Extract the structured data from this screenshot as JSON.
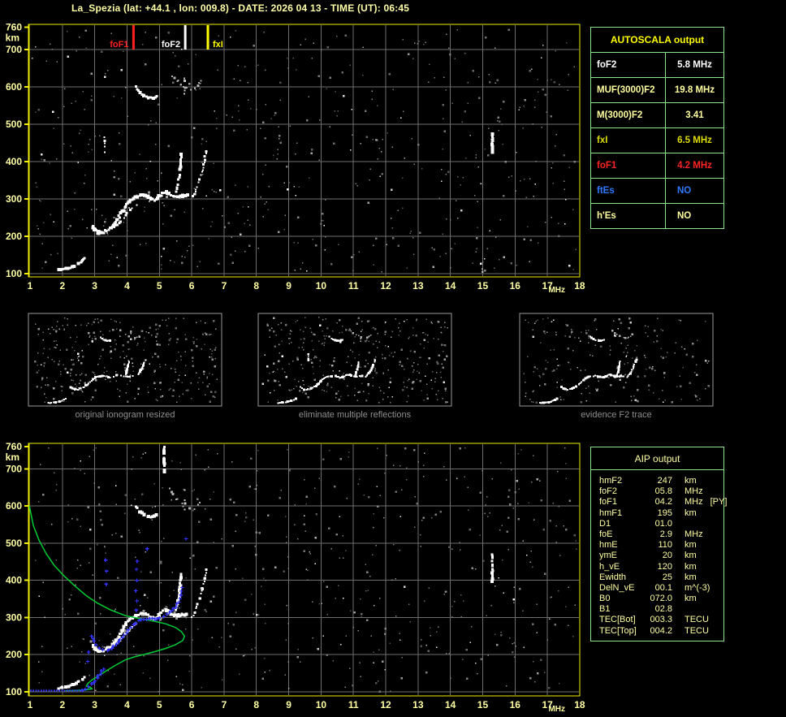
{
  "header": {
    "title": "La_Spezia (lat:  +44.1 , lon:  009.8) - DATE:  2026 04 13  - TIME (UT):  06:45"
  },
  "colors": {
    "pale_yellow": "#FFFFA4",
    "axis_yellow": "#F0F000",
    "grid_gray": "#6E6E6E",
    "table_green": "#8CE68C",
    "header_yellow": "#FFFF00",
    "row_white": "#FFFFFF",
    "row_pale": "#FFFF9E",
    "row_yellow": "#DCDC00",
    "row_red": "#FF2424",
    "row_blue": "#2E7BFF",
    "marker_red": "#FF2020",
    "marker_white": "#FFFFFF",
    "marker_yellow": "#FFFF00",
    "profile_green": "#00CD33",
    "trace_blue": "#3333FF",
    "noise_gray": "#8C8C8C",
    "caption_gray": "#8F8F8F",
    "trace_white": "#FFFFFF",
    "echo_gray": "#B0B0B0"
  },
  "autoscala_table": {
    "title": "AUTOSCALA output",
    "rows": [
      {
        "label": "foF2",
        "value": "5.8 MHz",
        "color": "row_white"
      },
      {
        "label": "MUF(3000)F2",
        "value": "19.8 MHz",
        "color": "row_pale"
      },
      {
        "label": "M(3000)F2",
        "value": "3.41",
        "color": "row_pale"
      },
      {
        "label": "fxI",
        "value": "6.5 MHz",
        "color": "row_yellow"
      },
      {
        "label": "foF1",
        "value": "4.2 MHz",
        "color": "row_red"
      },
      {
        "label": "ftEs",
        "value": "NO",
        "color": "row_blue"
      },
      {
        "label": "h'Es",
        "value": "NO",
        "color": "row_pale"
      }
    ]
  },
  "aip_table": {
    "title": "AIP output",
    "rows": [
      {
        "label": "hmF2",
        "value": "247",
        "unit": "km",
        "note": ""
      },
      {
        "label": "foF2",
        "value": "05.8",
        "unit": "MHz",
        "note": ""
      },
      {
        "label": "foF1",
        "value": "04.2",
        "unit": "MHz",
        "note": "[PY]"
      },
      {
        "label": "hmF1",
        "value": "195",
        "unit": "km",
        "note": ""
      },
      {
        "label": "D1",
        "value": "01.0",
        "unit": "",
        "note": ""
      },
      {
        "label": "foE",
        "value": "2.9",
        "unit": "MHz",
        "note": ""
      },
      {
        "label": "hmE",
        "value": "110",
        "unit": "km",
        "note": ""
      },
      {
        "label": "ymE",
        "value": "20",
        "unit": "km",
        "note": ""
      },
      {
        "label": "h_vE",
        "value": "120",
        "unit": "km",
        "note": ""
      },
      {
        "label": "Ewidth",
        "value": "25",
        "unit": "km",
        "note": ""
      },
      {
        "label": "DelN_vE",
        "value": "00.1",
        "unit": "m^(-3)",
        "note": ""
      },
      {
        "label": "B0",
        "value": "072.0",
        "unit": "km",
        "note": ""
      },
      {
        "label": "B1",
        "value": "02.8",
        "unit": "",
        "note": ""
      },
      {
        "label": "TEC[Bot]",
        "value": "003.3",
        "unit": "TECU",
        "note": ""
      },
      {
        "label": "TEC[Top]",
        "value": "004.2",
        "unit": "TECU",
        "note": ""
      }
    ]
  },
  "thumbnails": [
    {
      "caption": "original ionogram resized"
    },
    {
      "caption": "eliminate multiple reflections"
    },
    {
      "caption": "evidence F2 trace"
    }
  ],
  "chart_data": [
    {
      "id": "main_ionogram",
      "type": "scatter",
      "title": "autoscaled ionogram with characteristic frequency markers",
      "xlabel": "MHz",
      "ylabel": "km",
      "xlim": [
        1,
        18
      ],
      "ylim": [
        100,
        760
      ],
      "grid": true,
      "x_ticks": [
        1,
        2,
        3,
        4,
        5,
        6,
        7,
        8,
        9,
        10,
        11,
        12,
        13,
        14,
        15,
        16,
        17,
        18
      ],
      "y_ticks": [
        760,
        700,
        600,
        500,
        400,
        300,
        200,
        100
      ],
      "markers": [
        {
          "label": "foF1",
          "f": 4.2,
          "color": "marker_red",
          "side": "left"
        },
        {
          "label": "foF2",
          "f": 5.8,
          "color": "marker_white",
          "side": "left"
        },
        {
          "label": "fxI",
          "f": 6.5,
          "color": "marker_yellow",
          "side": "right"
        }
      ],
      "traces": {
        "e_trace": [
          [
            1.88,
            110
          ],
          [
            2.0,
            112
          ],
          [
            2.12,
            113
          ],
          [
            2.25,
            116
          ],
          [
            2.38,
            121
          ],
          [
            2.5,
            127
          ],
          [
            2.62,
            134
          ],
          [
            2.7,
            141
          ]
        ],
        "f_trace": [
          [
            2.92,
            228
          ],
          [
            3.0,
            218
          ],
          [
            3.12,
            210
          ],
          [
            3.28,
            211
          ],
          [
            3.42,
            218
          ],
          [
            3.58,
            230
          ],
          [
            3.72,
            247
          ],
          [
            3.85,
            266
          ],
          [
            3.97,
            284
          ],
          [
            4.1,
            297
          ],
          [
            4.25,
            306
          ],
          [
            4.42,
            310
          ],
          [
            4.58,
            309
          ],
          [
            4.72,
            301
          ],
          [
            4.85,
            297
          ],
          [
            4.97,
            303
          ],
          [
            5.08,
            315
          ],
          [
            5.2,
            320
          ],
          [
            5.32,
            313
          ],
          [
            5.45,
            307
          ],
          [
            5.6,
            306
          ],
          [
            5.72,
            308
          ],
          [
            5.85,
            311
          ]
        ],
        "f_trace_lower": [
          [
            3.55,
            220
          ],
          [
            3.7,
            231
          ],
          [
            3.85,
            245
          ],
          [
            4.0,
            261
          ],
          [
            4.15,
            275
          ],
          [
            4.28,
            284
          ]
        ],
        "o_asymptote": [
          [
            5.52,
            320
          ],
          [
            5.57,
            338
          ],
          [
            5.61,
            358
          ],
          [
            5.64,
            380
          ],
          [
            5.66,
            400
          ],
          [
            5.68,
            418
          ]
        ],
        "x_branch": [
          [
            6.02,
            300
          ],
          [
            6.08,
            312
          ],
          [
            6.16,
            330
          ],
          [
            6.25,
            352
          ],
          [
            6.33,
            378
          ],
          [
            6.4,
            405
          ],
          [
            6.46,
            428
          ]
        ],
        "echo_arc_low": [
          [
            4.28,
            600
          ],
          [
            4.4,
            585
          ],
          [
            4.52,
            576
          ],
          [
            4.66,
            571
          ],
          [
            4.8,
            571
          ],
          [
            4.93,
            576
          ]
        ],
        "echo_arc_high": [
          [
            5.3,
            645
          ],
          [
            5.42,
            630
          ],
          [
            5.55,
            617
          ],
          [
            5.68,
            606
          ],
          [
            5.82,
            597
          ],
          [
            5.95,
            592
          ],
          [
            6.08,
            594
          ],
          [
            6.18,
            602
          ],
          [
            6.26,
            614
          ]
        ],
        "echo_streak": [
          [
            5.78,
            565
          ],
          [
            5.78,
            640
          ]
        ],
        "streak_a": [
          [
            3.3,
            425
          ],
          [
            3.3,
            472
          ]
        ],
        "streak_b": [
          [
            15.3,
            425
          ],
          [
            15.3,
            475
          ]
        ]
      }
    },
    {
      "id": "profile_ionogram",
      "type": "scatter",
      "title": "ionogram with restored trace and electron density profile",
      "xlabel": "MHz",
      "ylabel": "km",
      "xlim": [
        1,
        18
      ],
      "ylim": [
        100,
        760
      ],
      "grid": true,
      "x_ticks": [
        1,
        2,
        3,
        4,
        5,
        6,
        7,
        8,
        9,
        10,
        11,
        12,
        13,
        14,
        15,
        16,
        17,
        18
      ],
      "y_ticks": [
        760,
        700,
        600,
        500,
        400,
        300,
        200,
        100
      ],
      "traces": {
        "e_trace": [
          [
            1.88,
            110
          ],
          [
            2.0,
            112
          ],
          [
            2.12,
            113
          ],
          [
            2.25,
            116
          ],
          [
            2.38,
            121
          ],
          [
            2.5,
            127
          ],
          [
            2.62,
            134
          ],
          [
            2.7,
            141
          ]
        ],
        "f_trace": [
          [
            2.92,
            228
          ],
          [
            3.0,
            218
          ],
          [
            3.12,
            210
          ],
          [
            3.28,
            211
          ],
          [
            3.42,
            218
          ],
          [
            3.58,
            230
          ],
          [
            3.72,
            247
          ],
          [
            3.85,
            266
          ],
          [
            3.97,
            284
          ],
          [
            4.1,
            297
          ],
          [
            4.25,
            306
          ],
          [
            4.42,
            310
          ],
          [
            4.58,
            309
          ],
          [
            4.72,
            301
          ],
          [
            4.85,
            297
          ],
          [
            4.97,
            303
          ],
          [
            5.08,
            315
          ],
          [
            5.2,
            320
          ],
          [
            5.32,
            313
          ],
          [
            5.45,
            307
          ],
          [
            5.6,
            306
          ],
          [
            5.72,
            308
          ],
          [
            5.85,
            311
          ]
        ],
        "f_trace_lower": [
          [
            3.55,
            220
          ],
          [
            3.7,
            231
          ],
          [
            3.85,
            245
          ],
          [
            4.0,
            261
          ],
          [
            4.15,
            275
          ],
          [
            4.28,
            284
          ]
        ],
        "o_asymptote": [
          [
            5.52,
            320
          ],
          [
            5.57,
            338
          ],
          [
            5.61,
            358
          ],
          [
            5.64,
            380
          ],
          [
            5.66,
            400
          ],
          [
            5.68,
            418
          ]
        ],
        "x_branch": [
          [
            6.02,
            300
          ],
          [
            6.08,
            312
          ],
          [
            6.16,
            330
          ],
          [
            6.25,
            352
          ],
          [
            6.33,
            378
          ],
          [
            6.4,
            405
          ],
          [
            6.46,
            428
          ]
        ],
        "echo_arc_low": [
          [
            4.28,
            600
          ],
          [
            4.4,
            585
          ],
          [
            4.52,
            576
          ],
          [
            4.66,
            571
          ],
          [
            4.8,
            571
          ],
          [
            4.93,
            576
          ]
        ],
        "echo_arc_high": [
          [
            5.3,
            645
          ],
          [
            5.42,
            630
          ],
          [
            5.55,
            617
          ],
          [
            5.68,
            606
          ],
          [
            5.82,
            597
          ],
          [
            5.95,
            592
          ],
          [
            6.08,
            594
          ],
          [
            6.18,
            602
          ],
          [
            6.26,
            614
          ]
        ],
        "echo_streak": [
          [
            5.78,
            565
          ],
          [
            5.78,
            660
          ]
        ],
        "streak_b": [
          [
            15.3,
            398
          ],
          [
            15.3,
            470
          ]
        ],
        "top_streak": [
          [
            5.15,
            692
          ],
          [
            5.15,
            758
          ]
        ]
      },
      "profile_green": [
        [
          0.98,
          600
        ],
        [
          1.1,
          548
        ],
        [
          1.28,
          508
        ],
        [
          1.5,
          472
        ],
        [
          1.75,
          440
        ],
        [
          2.05,
          412
        ],
        [
          2.4,
          384
        ],
        [
          2.75,
          358
        ],
        [
          3.1,
          338
        ],
        [
          3.5,
          320
        ],
        [
          3.95,
          305
        ],
        [
          4.4,
          297
        ],
        [
          4.85,
          290
        ],
        [
          5.2,
          283
        ],
        [
          5.5,
          273
        ],
        [
          5.68,
          262
        ],
        [
          5.78,
          250
        ],
        [
          5.72,
          238
        ],
        [
          5.5,
          227
        ],
        [
          5.2,
          217
        ],
        [
          4.85,
          208
        ],
        [
          4.5,
          200
        ],
        [
          4.22,
          194
        ],
        [
          3.95,
          186
        ],
        [
          3.65,
          172
        ],
        [
          3.35,
          156
        ],
        [
          3.1,
          142
        ],
        [
          2.9,
          131
        ],
        [
          2.78,
          122
        ],
        [
          2.74,
          115
        ],
        [
          2.88,
          111
        ],
        [
          2.92,
          108
        ],
        [
          2.7,
          105
        ],
        [
          2.4,
          104
        ],
        [
          2.1,
          103
        ]
      ],
      "blue_bottom": {
        "f_start": 1.0,
        "f_end": 2.62,
        "h": 103
      },
      "blue_e_rise": [
        [
          2.62,
          104
        ],
        [
          2.72,
          107
        ],
        [
          2.82,
          113
        ],
        [
          2.92,
          121
        ],
        [
          3.02,
          131
        ],
        [
          3.12,
          143
        ],
        [
          3.22,
          156
        ],
        [
          3.32,
          168
        ]
      ],
      "blue_f_trace": [
        [
          2.9,
          251
        ],
        [
          2.98,
          236
        ],
        [
          3.05,
          226
        ],
        [
          3.15,
          218
        ],
        [
          3.25,
          214
        ],
        [
          3.38,
          213
        ],
        [
          3.52,
          218
        ],
        [
          3.65,
          227
        ],
        [
          3.78,
          238
        ],
        [
          3.92,
          252
        ],
        [
          4.05,
          266
        ],
        [
          4.2,
          280
        ],
        [
          4.35,
          291
        ],
        [
          4.52,
          296
        ],
        [
          4.68,
          297
        ],
        [
          4.85,
          296
        ],
        [
          5.0,
          298
        ],
        [
          5.12,
          303
        ],
        [
          5.25,
          309
        ],
        [
          5.38,
          318
        ],
        [
          5.5,
          329
        ],
        [
          5.6,
          343
        ],
        [
          5.66,
          360
        ],
        [
          5.7,
          380
        ],
        [
          5.68,
          392
        ]
      ],
      "blue_scatter": [
        [
          3.35,
          390
        ],
        [
          3.36,
          425
        ],
        [
          3.33,
          455
        ],
        [
          4.28,
          320
        ],
        [
          4.3,
          345
        ],
        [
          4.27,
          372
        ],
        [
          4.3,
          400
        ],
        [
          4.29,
          430
        ],
        [
          4.31,
          452
        ],
        [
          2.78,
          182
        ],
        [
          2.81,
          207
        ],
        [
          5.82,
          512
        ],
        [
          4.62,
          485
        ]
      ]
    }
  ],
  "axis": {
    "mhz_label": "MHz",
    "km_label": "km"
  }
}
